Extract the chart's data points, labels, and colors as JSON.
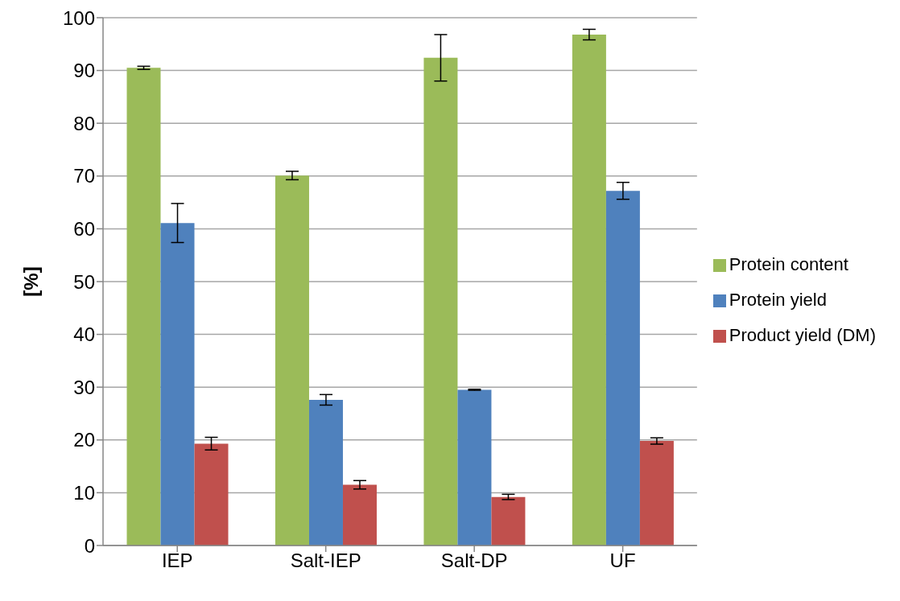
{
  "chart_data": {
    "type": "bar",
    "ylabel": "[%]",
    "categories": [
      "IEP",
      "Salt-IEP",
      "Salt-DP",
      "UF"
    ],
    "series": [
      {
        "name": "Protein content",
        "color": "#9bbb59",
        "values": [
          90.5,
          70.1,
          92.4,
          96.8
        ],
        "errors": [
          0.3,
          0.8,
          4.4,
          1
        ]
      },
      {
        "name": "Protein yield",
        "color": "#4f81bd",
        "values": [
          61.1,
          27.6,
          29.5,
          67.2
        ],
        "errors": [
          3.7,
          1,
          0.1,
          1.6
        ]
      },
      {
        "name": "Product yield (DM)",
        "color": "#c0504d",
        "values": [
          19.3,
          11.5,
          9.2,
          19.8
        ],
        "errors": [
          1.2,
          0.8,
          0.5,
          0.6
        ]
      }
    ],
    "ylim": [
      0,
      100
    ],
    "yticks": [
      0,
      10,
      20,
      30,
      40,
      50,
      60,
      70,
      80,
      90,
      100
    ],
    "grid": "y",
    "legend": "right"
  }
}
